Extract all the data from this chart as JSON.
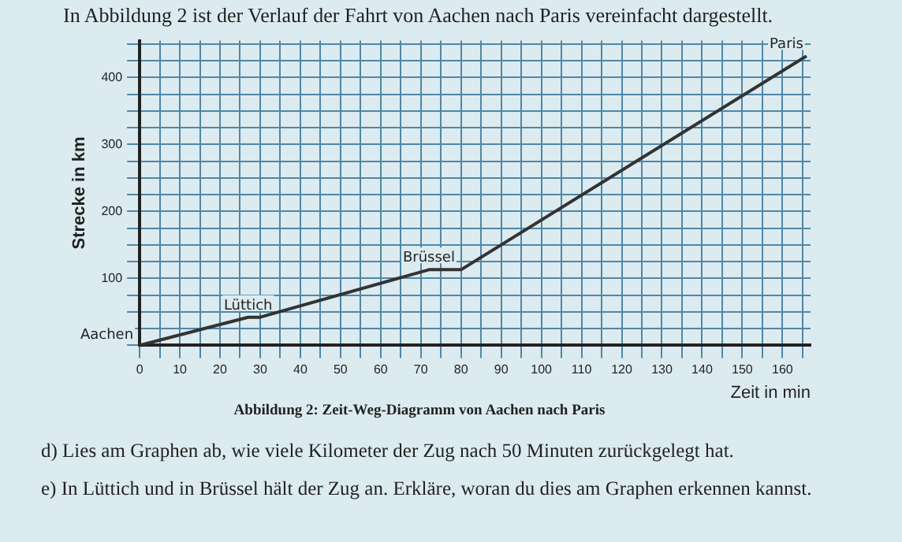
{
  "chart_data": {
    "type": "line",
    "title": "In Abbildung 2 ist der Verlauf der Fahrt von Aachen nach Paris vereinfacht dargestellt.",
    "xlabel": "Zeit in min",
    "ylabel": "Strecke in km",
    "x": [
      0,
      27,
      30,
      72,
      80,
      166
    ],
    "series": [
      {
        "color": "#333333",
        "values": [
          0,
          42,
          42,
          113,
          113,
          432
        ]
      }
    ],
    "xlim": [
      0,
      167
    ],
    "ylim": [
      0,
      455
    ],
    "xticks": [
      0,
      {
        "value": 5,
        "label": null
      },
      10,
      {
        "value": 15,
        "label": null
      },
      20,
      {
        "value": 25,
        "label": null
      },
      30,
      {
        "value": 35,
        "label": null
      },
      40,
      {
        "value": 45,
        "label": null
      },
      50,
      {
        "value": 55,
        "label": null
      },
      60,
      {
        "value": 65,
        "label": null
      },
      70,
      {
        "value": 75,
        "label": null
      },
      80,
      {
        "value": 85,
        "label": null
      },
      90,
      {
        "value": 95,
        "label": null
      },
      100,
      {
        "value": 105,
        "label": null
      },
      110,
      {
        "value": 115,
        "label": null
      },
      120,
      {
        "value": 125,
        "label": null
      },
      130,
      {
        "value": 135,
        "label": null
      },
      140,
      {
        "value": 145,
        "label": null
      },
      150,
      {
        "value": 155,
        "label": null
      },
      160,
      {
        "value": 165,
        "label": null
      }
    ],
    "yticks": [
      {
        "value": 0,
        "label": null
      },
      {
        "value": 25,
        "label": null
      },
      {
        "value": 50,
        "label": null
      },
      {
        "value": 75,
        "label": null
      },
      100,
      {
        "value": 125,
        "label": null
      },
      {
        "value": 150,
        "label": null
      },
      {
        "value": 175,
        "label": null
      },
      200,
      {
        "value": 225,
        "label": null
      },
      {
        "value": 250,
        "label": null
      },
      {
        "value": 275,
        "label": null
      },
      300,
      {
        "value": 325,
        "label": null
      },
      {
        "value": 350,
        "label": null
      },
      {
        "value": 375,
        "label": null
      },
      400,
      {
        "value": 425,
        "label": null
      },
      {
        "value": 450,
        "label": null
      }
    ],
    "grid": true,
    "legend": false,
    "marker": "none",
    "line_style": "solid",
    "annotations": [
      {
        "text": "Aachen",
        "x": 0,
        "y": 0
      },
      {
        "text": "Lüttich",
        "x": 27,
        "y": 42
      },
      {
        "text": "Brüssel",
        "x": 72,
        "y": 113
      },
      {
        "text": "Paris",
        "x": 166,
        "y": 432
      },
      "Abbildung 2: Zeit-Weg-Diagramm von Aachen nach Paris",
      "d) Lies am Graphen ab, wie viele Kilometer der Zug nach 50 Minuten zurückgelegt hat.",
      "e) In Lüttich und in Brüssel hält der Zug an. Erkläre, woran du dies am Graphen erkennen kannst."
    ]
  }
}
